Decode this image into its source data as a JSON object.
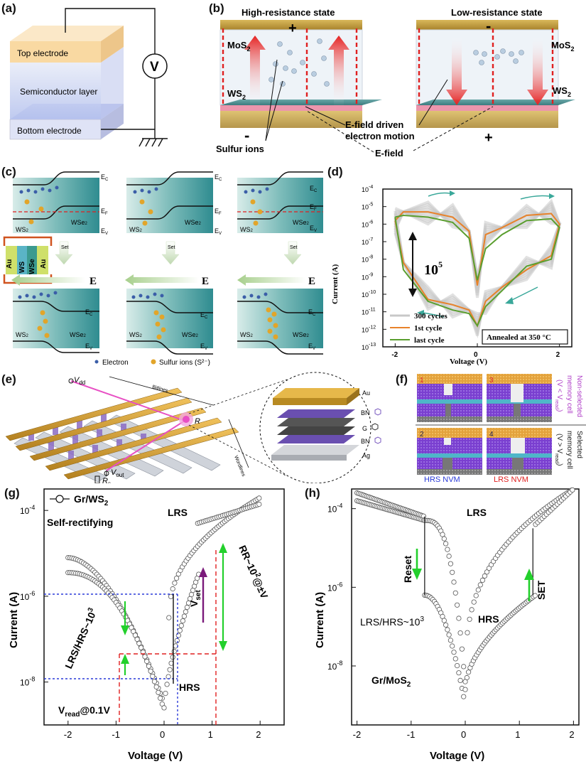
{
  "panels": {
    "a": {
      "label": "(a)",
      "top_electrode": "Top electrode",
      "semiconductor": "Semiconductor layer",
      "bottom_electrode": "Bottom electrode",
      "meter": "V"
    },
    "b": {
      "label": "(b)",
      "hrs_title": "High-resistance state",
      "lrs_title": "Low-resistance state",
      "mos2": "MoS",
      "ws2": "WS",
      "sub": "2",
      "plus": "+",
      "minus": "-",
      "sulfur_ions": "Sulfur ions",
      "efield_driven": "E-field driven",
      "electron_motion": "electron motion",
      "efield": "E-field"
    },
    "c": {
      "label": "(c)",
      "ec": "E",
      "ef": "E",
      "ev": "E",
      "ec_sub": "C",
      "ef_sub": "F",
      "ev_sub": "V",
      "ws2": "WS",
      "wse2": "WSe",
      "sub2": "2",
      "set": "Set",
      "e": "E",
      "au": "Au",
      "ws2_stack": "WS",
      "wse2_stack": "WSe",
      "legend_electron": "Electron",
      "legend_sulfur": "Sulfur ions (S²⁻)"
    },
    "d": {
      "label": "(d)",
      "xlabel": "Voltage (V)",
      "ylabel": "Current (A)",
      "xticks": [
        "-2",
        "0",
        "2"
      ],
      "yticks": [
        "10",
        "10",
        "10",
        "10",
        "10",
        "10",
        "10",
        "10",
        "10",
        "10"
      ],
      "ytick_exp": [
        "-4",
        "-5",
        "-6",
        "-7",
        "-8",
        "-9",
        "-10",
        "-11",
        "-12",
        "-13"
      ],
      "ratio": "10",
      "ratio_exp": "5",
      "legend": [
        "300 cycles",
        "1st cycle",
        "last cycle"
      ],
      "annealed": "Annealed at 350 °C",
      "colors": {
        "gray": "#c8c8c8",
        "orange": "#e8822a",
        "green": "#5a9e2f",
        "teal": "#3aa89a"
      }
    },
    "e": {
      "label": "(e)",
      "bitlines": "Bitlines",
      "wordlines": "Wordlines",
      "vdd": "V",
      "vdd_sub": "dd",
      "vout": "V",
      "vout_sub": "out",
      "rs": "R",
      "rs_sub": "s",
      "r": "R",
      "au": "Au",
      "bn": "BN",
      "g": "G",
      "ag": "Ag"
    },
    "f": {
      "label": "(f)",
      "n1": "1",
      "n2": "2",
      "n3": "3",
      "n4": "4",
      "non_selected": "Non-selected",
      "selected": "Selected",
      "memory_cell": "memory cell",
      "cond_non": "(V < V",
      "cond_sel": "(V > V",
      "read_sub": "read",
      "hrs_nvm": "HRS NVM",
      "lrs_nvm": "LRS NVM"
    },
    "g": {
      "label": "(g)",
      "legend": "Gr/WS",
      "legend_sub": "2",
      "self_rectifying": "Self-rectifying",
      "lrs": "LRS",
      "hrs": "HRS",
      "vset": "V",
      "vset_sub": "set",
      "ratio": "LRS/HRS~10",
      "ratio_exp": "3",
      "rr": "RR~10",
      "rr_exp": "2",
      "rr_tail": "@±V",
      "vread": "V",
      "vread_sub": "read",
      "vread_tail": "@0.1V",
      "xlabel": "Voltage (V)",
      "ylabel": "Current (A)",
      "xticks": [
        "-2",
        "-1",
        "0",
        "1",
        "2"
      ],
      "yticks": [
        "10",
        "10",
        "10",
        "10"
      ],
      "ytick_exp": [
        "-4",
        "-6",
        "-8",
        ""
      ],
      "ytick_exp_list": [
        "-4",
        "-6",
        "-8"
      ]
    },
    "h": {
      "label": "(h)",
      "lrs": "LRS",
      "hrs": "HRS",
      "reset": "Reset",
      "set": "SET",
      "ratio": "LRS/HRS~10",
      "ratio_exp": "3",
      "material": "Gr/MoS",
      "material_sub": "2",
      "xlabel": "Voltage (V)",
      "ylabel": "Current (A)",
      "xticks": [
        "-2",
        "-1",
        "0",
        "1",
        "2"
      ],
      "ytick_exp_list": [
        "-4",
        "-6",
        "-8"
      ]
    }
  },
  "chart_data": [
    {
      "type": "line",
      "panel": "d",
      "xlabel": "Voltage (V)",
      "ylabel": "Current (A)",
      "xlim": [
        -2.3,
        2.3
      ],
      "ylim_log10": [
        -13,
        -4
      ],
      "series": [
        {
          "name": "1st cycle",
          "x": [
            -2,
            -1.8,
            -1.2,
            -0.6,
            -0.2,
            0,
            0.2,
            0.6,
            1.2,
            1.8,
            2,
            1.8,
            1.2,
            0.6,
            0.2,
            0,
            -0.2,
            -0.6,
            -1.2,
            -1.8,
            -2
          ],
          "log10y": [
            -5.8,
            -5.3,
            -5.3,
            -5.6,
            -6.4,
            -9.5,
            -6.6,
            -6.2,
            -5.5,
            -5.4,
            -6.0,
            -7.8,
            -8.6,
            -9.6,
            -10.4,
            -11.8,
            -10.9,
            -10.6,
            -10.3,
            -8.2,
            -5.8
          ]
        },
        {
          "name": "last cycle",
          "x": [
            -2,
            -1.8,
            -1.2,
            -0.6,
            -0.2,
            0,
            0.2,
            0.6,
            1.2,
            1.8,
            2,
            1.8,
            1.2,
            0.6,
            0.2,
            0,
            -0.2,
            -0.6,
            -1.2,
            -1.8,
            -2
          ],
          "log10y": [
            -5.6,
            -5.5,
            -5.6,
            -5.9,
            -6.8,
            -9.2,
            -7.4,
            -6.6,
            -5.8,
            -5.7,
            -6.2,
            -8.0,
            -8.4,
            -9.8,
            -10.7,
            -11.8,
            -11.1,
            -10.9,
            -10.4,
            -8.6,
            -5.6
          ]
        }
      ]
    },
    {
      "type": "scatter",
      "panel": "g",
      "series": [
        {
          "name": "Gr/WS2"
        }
      ],
      "xlim": [
        -2.5,
        2.5
      ],
      "ylim_log10": [
        -9,
        -3.5
      ]
    },
    {
      "type": "scatter",
      "panel": "h",
      "series": [
        {
          "name": "Gr/MoS2"
        }
      ],
      "xlim": [
        -2.1,
        2.1
      ],
      "ylim_log10": [
        -9.5,
        -3.5
      ]
    }
  ]
}
